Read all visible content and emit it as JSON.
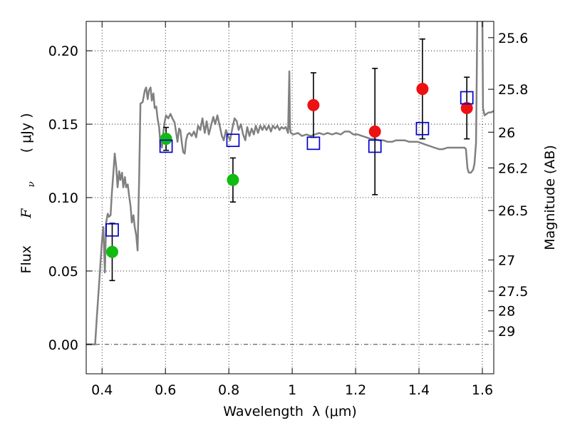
{
  "chart_data": {
    "type": "scatter",
    "xlabel": "Wavelength  λ (μm)",
    "ylabel": {
      "text": "Flux",
      "symbol": "F",
      "subscript": "ν",
      "unit": "( μJy )"
    },
    "y2label": "Magnitude (AB)",
    "xlim": [
      0.35,
      1.636
    ],
    "ylim": [
      -0.02,
      0.22
    ],
    "xticks": [
      {
        "value": 0.4,
        "label": "0.4"
      },
      {
        "value": 0.6,
        "label": "0.6"
      },
      {
        "value": 0.8,
        "label": "0.8"
      },
      {
        "value": 1.0,
        "label": "1"
      },
      {
        "value": 1.2,
        "label": "1.2"
      },
      {
        "value": 1.4,
        "label": "1.4"
      },
      {
        "value": 1.6,
        "label": "1.6"
      }
    ],
    "yticks": [
      {
        "value": 0.0,
        "label": "0.00"
      },
      {
        "value": 0.05,
        "label": "0.05"
      },
      {
        "value": 0.1,
        "label": "0.10"
      },
      {
        "value": 0.15,
        "label": "0.15"
      },
      {
        "value": 0.2,
        "label": "0.20"
      }
    ],
    "y2ticks": [
      "25.6",
      "25.8",
      "26",
      "26.2",
      "26.5",
      "27",
      "27.5",
      "28",
      "29"
    ],
    "grid": true,
    "zero_line": true,
    "series": [
      {
        "kind": "line",
        "color": "#808080",
        "x": [
          0.351,
          0.378,
          0.384,
          0.391,
          0.396,
          0.4,
          0.404,
          0.409,
          0.413,
          0.418,
          0.422,
          0.427,
          0.431,
          0.436,
          0.44,
          0.445,
          0.449,
          0.454,
          0.458,
          0.463,
          0.467,
          0.472,
          0.476,
          0.481,
          0.485,
          0.49,
          0.494,
          0.499,
          0.503,
          0.508,
          0.512,
          0.517,
          0.521,
          0.528,
          0.535,
          0.539,
          0.544,
          0.548,
          0.553,
          0.557,
          0.562,
          0.566,
          0.571,
          0.575,
          0.58,
          0.584,
          0.589,
          0.593,
          0.598,
          0.602,
          0.609,
          0.616,
          0.622,
          0.629,
          0.634,
          0.638,
          0.643,
          0.647,
          0.652,
          0.656,
          0.661,
          0.665,
          0.67,
          0.676,
          0.683,
          0.69,
          0.697,
          0.703,
          0.71,
          0.717,
          0.724,
          0.73,
          0.737,
          0.744,
          0.751,
          0.757,
          0.764,
          0.771,
          0.778,
          0.784,
          0.791,
          0.798,
          0.804,
          0.811,
          0.818,
          0.825,
          0.831,
          0.838,
          0.845,
          0.852,
          0.858,
          0.865,
          0.872,
          0.879,
          0.885,
          0.892,
          0.899,
          0.906,
          0.912,
          0.919,
          0.926,
          0.933,
          0.939,
          0.946,
          0.953,
          0.96,
          0.966,
          0.973,
          0.98,
          0.987,
          0.991,
          0.993,
          0.996,
          1.004,
          1.018,
          1.031,
          1.045,
          1.058,
          1.072,
          1.085,
          1.099,
          1.112,
          1.126,
          1.139,
          1.153,
          1.166,
          1.18,
          1.193,
          1.207,
          1.22,
          1.234,
          1.247,
          1.261,
          1.274,
          1.288,
          1.301,
          1.315,
          1.328,
          1.342,
          1.355,
          1.369,
          1.382,
          1.396,
          1.409,
          1.422,
          1.436,
          1.449,
          1.463,
          1.476,
          1.49,
          1.503,
          1.517,
          1.53,
          1.544,
          1.548,
          1.553,
          1.557,
          1.564,
          1.571,
          1.575,
          1.58,
          1.582,
          1.584,
          1.59,
          1.598,
          1.6,
          1.602,
          1.607,
          1.613,
          1.62,
          1.627,
          1.636
        ],
        "y": [
          0.0,
          0.0,
          0.02,
          0.042,
          0.059,
          0.071,
          0.08,
          0.049,
          0.083,
          0.089,
          0.087,
          0.088,
          0.103,
          0.118,
          0.13,
          0.12,
          0.107,
          0.118,
          0.112,
          0.117,
          0.107,
          0.114,
          0.107,
          0.109,
          0.102,
          0.094,
          0.083,
          0.088,
          0.08,
          0.074,
          0.064,
          0.113,
          0.164,
          0.165,
          0.173,
          0.175,
          0.167,
          0.173,
          0.175,
          0.166,
          0.171,
          0.161,
          0.162,
          0.154,
          0.148,
          0.137,
          0.134,
          0.144,
          0.152,
          0.156,
          0.154,
          0.157,
          0.154,
          0.151,
          0.144,
          0.138,
          0.147,
          0.146,
          0.137,
          0.131,
          0.13,
          0.139,
          0.143,
          0.144,
          0.142,
          0.145,
          0.141,
          0.149,
          0.146,
          0.154,
          0.144,
          0.152,
          0.143,
          0.149,
          0.155,
          0.15,
          0.156,
          0.149,
          0.142,
          0.139,
          0.146,
          0.142,
          0.139,
          0.147,
          0.154,
          0.152,
          0.146,
          0.15,
          0.143,
          0.139,
          0.148,
          0.142,
          0.147,
          0.143,
          0.149,
          0.144,
          0.149,
          0.146,
          0.149,
          0.146,
          0.149,
          0.145,
          0.149,
          0.147,
          0.149,
          0.146,
          0.148,
          0.147,
          0.148,
          0.144,
          0.186,
          0.147,
          0.144,
          0.143,
          0.144,
          0.142,
          0.143,
          0.142,
          0.143,
          0.144,
          0.143,
          0.144,
          0.143,
          0.144,
          0.143,
          0.145,
          0.145,
          0.143,
          0.143,
          0.142,
          0.141,
          0.14,
          0.14,
          0.139,
          0.139,
          0.138,
          0.138,
          0.139,
          0.139,
          0.139,
          0.138,
          0.138,
          0.138,
          0.137,
          0.136,
          0.135,
          0.134,
          0.133,
          0.133,
          0.134,
          0.134,
          0.134,
          0.134,
          0.134,
          0.133,
          0.12,
          0.117,
          0.117,
          0.119,
          0.123,
          0.137,
          0.176,
          0.224,
          0.25,
          0.25,
          0.224,
          0.161,
          0.156,
          0.157,
          0.158,
          0.158,
          0.159
        ]
      },
      {
        "kind": "errorbar",
        "marker": "circle",
        "color": "#11bb11",
        "x": [
          0.432,
          0.602,
          0.813
        ],
        "y": [
          0.063,
          0.14,
          0.112
        ],
        "yerr": [
          0.0195,
          0.0078,
          0.015
        ]
      },
      {
        "kind": "errorbar",
        "marker": "circle",
        "color": "#ee1111",
        "x": [
          1.067,
          1.261,
          1.411,
          1.551
        ],
        "y": [
          0.163,
          0.145,
          0.174,
          0.161
        ],
        "yerr": [
          0.022,
          0.043,
          0.034,
          0.021
        ]
      },
      {
        "kind": "scatter",
        "marker": "open-square",
        "color": "#0000cc",
        "x": [
          0.432,
          0.602,
          0.813,
          1.067,
          1.261,
          1.411,
          1.551
        ],
        "y": [
          0.078,
          0.135,
          0.139,
          0.137,
          0.135,
          0.147,
          0.168
        ]
      }
    ]
  }
}
